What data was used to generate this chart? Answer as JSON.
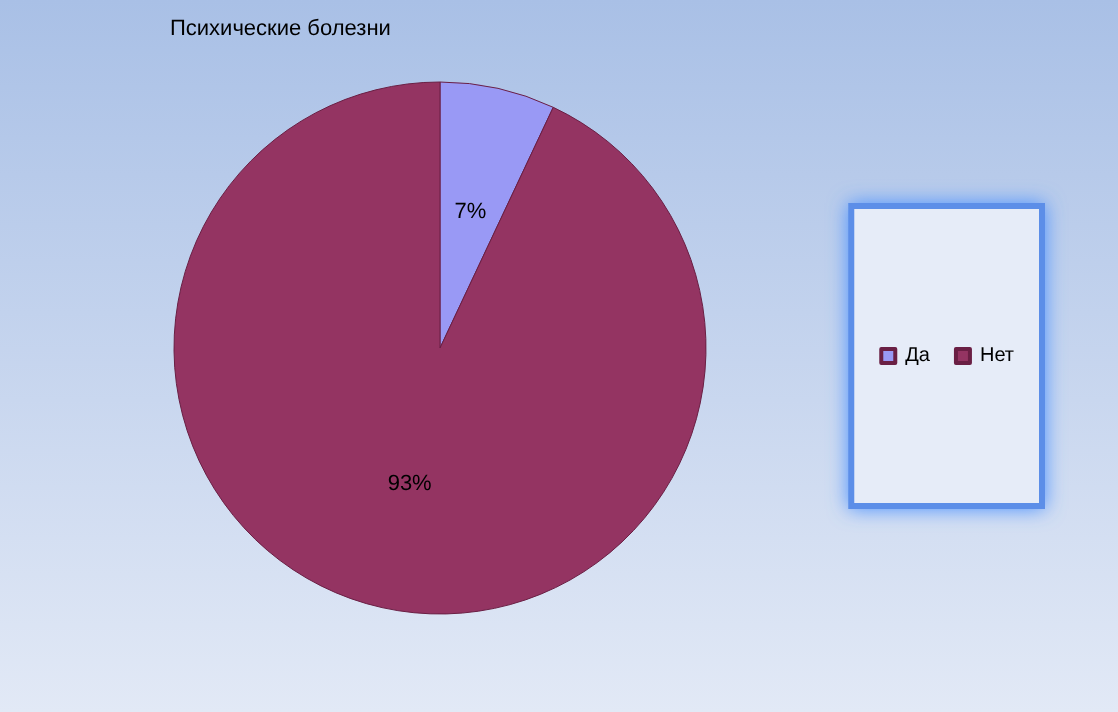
{
  "chart_data": {
    "type": "pie",
    "title": "Психические болезни",
    "categories": [
      "Да",
      "Нет"
    ],
    "values": [
      7,
      93
    ],
    "colors": [
      "#9999f5",
      "#943462"
    ],
    "value_labels": [
      "7%",
      "93%"
    ],
    "legend": "right"
  }
}
